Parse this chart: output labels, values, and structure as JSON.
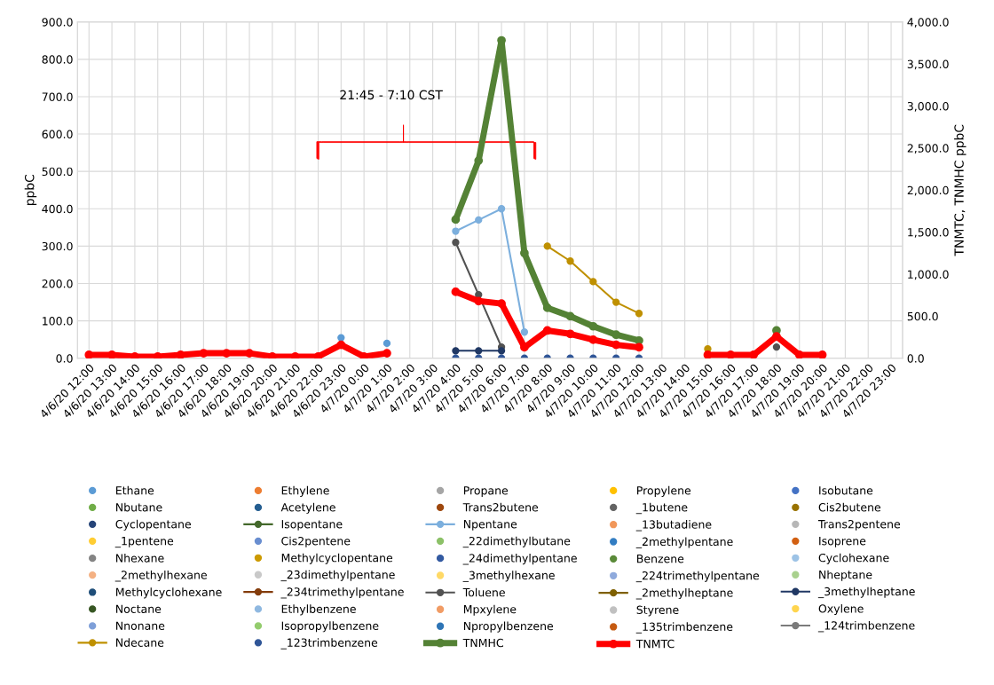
{
  "chart_data": {
    "type": "line",
    "ylabel": "ppbC",
    "y2label": "TNMTC, TNMHC ppbC",
    "annotations": [
      "21:45 - 7:10 CST"
    ],
    "categories": [
      "4/6/20 12:00",
      "4/6/20 13:00",
      "4/6/20 14:00",
      "4/6/20 15:00",
      "4/6/20 16:00",
      "4/6/20 17:00",
      "4/6/20 18:00",
      "4/6/20 19:00",
      "4/6/20 20:00",
      "4/6/20 21:00",
      "4/6/20 22:00",
      "4/6/20 23:00",
      "4/7/20 0:00",
      "4/7/20 1:00",
      "4/7/20 2:00",
      "4/7/20 3:00",
      "4/7/20 4:00",
      "4/7/20 5:00",
      "4/7/20 6:00",
      "4/7/20 7:00",
      "4/7/20 8:00",
      "4/7/20 9:00",
      "4/7/20 10:00",
      "4/7/20 11:00",
      "4/7/20 12:00",
      "4/7/20 13:00",
      "4/7/20 14:00",
      "4/7/20 15:00",
      "4/7/20 16:00",
      "4/7/20 17:00",
      "4/7/20 18:00",
      "4/7/20 19:00",
      "4/7/20 20:00",
      "4/7/20 21:00",
      "4/7/20 22:00",
      "4/7/20 23:00"
    ],
    "ylim": [
      0,
      900
    ],
    "yticks": [
      {
        "value": 0,
        "label": "0.0"
      },
      {
        "value": 100,
        "label": "100.0"
      },
      {
        "value": 200,
        "label": "200.0"
      },
      {
        "value": 300,
        "label": "300.0"
      },
      {
        "value": 400,
        "label": "400.0"
      },
      {
        "value": 500,
        "label": "500.0"
      },
      {
        "value": 600,
        "label": "600.0"
      },
      {
        "value": 700,
        "label": "700.0"
      },
      {
        "value": 800,
        "label": "800.0"
      },
      {
        "value": 900,
        "label": "900.0"
      }
    ],
    "y2lim": [
      0,
      4000
    ],
    "y2ticks": [
      {
        "value": 0,
        "label": "0.0"
      },
      {
        "value": 500,
        "label": "500.0"
      },
      {
        "value": 1000,
        "label": "1,000.0"
      },
      {
        "value": 1500,
        "label": "1,500.0"
      },
      {
        "value": 2000,
        "label": "2,000.0"
      },
      {
        "value": 2500,
        "label": "2,500.0"
      },
      {
        "value": 3000,
        "label": "3,000.0"
      },
      {
        "value": 3500,
        "label": "3,500.0"
      },
      {
        "value": 4000,
        "label": "4,000.0"
      }
    ],
    "grid": true,
    "legend": "bottom",
    "marker": "circle",
    "series": [
      {
        "name": "Ethane",
        "color": "#5b9bd5",
        "type": "scatter",
        "values": [
          null,
          null,
          null,
          null,
          null,
          null,
          null,
          null,
          null,
          null,
          null,
          55,
          null,
          40,
          null,
          null,
          null,
          null,
          null,
          null,
          null,
          null,
          null,
          null,
          null,
          null,
          null,
          null,
          null,
          null,
          null,
          null,
          null,
          null,
          null,
          null
        ]
      },
      {
        "name": "Ethylene",
        "color": "#ed7d31",
        "type": "scatter",
        "values": [
          null,
          null,
          null,
          null,
          null,
          null,
          null,
          null,
          null,
          null,
          null,
          null,
          null,
          null,
          null,
          null,
          null,
          null,
          null,
          null,
          null,
          null,
          null,
          null,
          null,
          null,
          null,
          null,
          null,
          null,
          null,
          null,
          null,
          null,
          null,
          null
        ]
      },
      {
        "name": "Propane",
        "color": "#a5a5a5",
        "type": "scatter",
        "values": [
          null,
          null,
          null,
          null,
          null,
          null,
          null,
          null,
          null,
          null,
          null,
          null,
          null,
          null,
          null,
          null,
          null,
          null,
          null,
          null,
          null,
          null,
          null,
          null,
          null,
          null,
          null,
          null,
          null,
          null,
          null,
          null,
          null,
          null,
          null,
          null
        ]
      },
      {
        "name": "Propylene",
        "color": "#ffc000",
        "type": "scatter",
        "values": [
          null,
          null,
          null,
          null,
          null,
          null,
          null,
          null,
          null,
          null,
          null,
          null,
          null,
          null,
          null,
          null,
          null,
          null,
          null,
          null,
          null,
          null,
          null,
          null,
          null,
          null,
          null,
          null,
          null,
          null,
          null,
          null,
          null,
          null,
          null,
          null
        ]
      },
      {
        "name": "Isobutane",
        "color": "#4472c4",
        "type": "scatter",
        "values": [
          null,
          null,
          null,
          null,
          null,
          null,
          null,
          null,
          null,
          null,
          null,
          null,
          null,
          null,
          null,
          null,
          null,
          null,
          null,
          null,
          null,
          null,
          null,
          null,
          null,
          null,
          null,
          null,
          null,
          null,
          null,
          null,
          null,
          null,
          null,
          null
        ]
      },
      {
        "name": "Nbutane",
        "color": "#70ad47",
        "type": "scatter",
        "values": [
          null,
          null,
          null,
          null,
          null,
          null,
          null,
          null,
          null,
          null,
          null,
          null,
          null,
          null,
          null,
          null,
          null,
          null,
          null,
          null,
          null,
          null,
          null,
          null,
          null,
          null,
          null,
          null,
          null,
          null,
          null,
          null,
          null,
          null,
          null,
          null
        ]
      },
      {
        "name": "Acetylene",
        "color": "#255e91",
        "type": "scatter",
        "values": [
          null,
          null,
          null,
          null,
          null,
          null,
          null,
          null,
          null,
          null,
          null,
          null,
          null,
          null,
          null,
          null,
          null,
          null,
          null,
          null,
          null,
          null,
          null,
          null,
          null,
          null,
          null,
          null,
          null,
          null,
          null,
          null,
          null,
          null,
          null,
          null
        ]
      },
      {
        "name": "Trans2butene",
        "color": "#9e480e",
        "type": "scatter",
        "values": [
          null,
          null,
          null,
          null,
          null,
          null,
          null,
          null,
          null,
          null,
          null,
          null,
          null,
          null,
          null,
          null,
          null,
          null,
          null,
          null,
          null,
          null,
          null,
          null,
          null,
          null,
          null,
          null,
          null,
          null,
          null,
          null,
          null,
          null,
          null,
          null
        ]
      },
      {
        "name": "_1butene",
        "color": "#636363",
        "type": "scatter",
        "values": [
          null,
          null,
          null,
          null,
          null,
          null,
          null,
          null,
          null,
          null,
          null,
          null,
          null,
          null,
          null,
          null,
          null,
          null,
          null,
          null,
          null,
          null,
          null,
          null,
          null,
          null,
          null,
          null,
          null,
          null,
          null,
          null,
          null,
          null,
          null,
          null
        ]
      },
      {
        "name": "Cis2butene",
        "color": "#997300",
        "type": "scatter",
        "values": [
          null,
          null,
          null,
          null,
          null,
          null,
          null,
          null,
          null,
          null,
          null,
          null,
          null,
          null,
          null,
          null,
          null,
          null,
          null,
          null,
          null,
          null,
          null,
          null,
          null,
          null,
          null,
          null,
          null,
          null,
          null,
          null,
          null,
          null,
          null,
          null
        ]
      },
      {
        "name": "Cyclopentane",
        "color": "#264478",
        "type": "scatter",
        "values": [
          null,
          null,
          null,
          null,
          null,
          null,
          null,
          null,
          null,
          null,
          null,
          null,
          null,
          null,
          null,
          null,
          null,
          null,
          null,
          null,
          null,
          null,
          null,
          null,
          null,
          null,
          null,
          null,
          null,
          null,
          null,
          null,
          null,
          null,
          null,
          null
        ]
      },
      {
        "name": "Isopentane",
        "color": "#43682b",
        "type": "line",
        "values": [
          null,
          null,
          null,
          null,
          null,
          null,
          null,
          null,
          null,
          null,
          null,
          null,
          null,
          null,
          null,
          null,
          null,
          null,
          null,
          null,
          null,
          null,
          null,
          null,
          null,
          null,
          null,
          null,
          null,
          null,
          null,
          null,
          null,
          null,
          null,
          null
        ]
      },
      {
        "name": "Npentane",
        "color": "#7cafdd",
        "type": "line",
        "values": [
          null,
          null,
          null,
          null,
          null,
          null,
          null,
          null,
          null,
          null,
          null,
          null,
          null,
          null,
          null,
          null,
          340,
          370,
          400,
          70,
          null,
          null,
          null,
          null,
          null,
          null,
          null,
          null,
          null,
          null,
          null,
          null,
          null,
          null,
          null,
          null
        ]
      },
      {
        "name": "_13butadiene",
        "color": "#f1975a",
        "type": "scatter",
        "values": [
          null,
          null,
          null,
          null,
          null,
          null,
          null,
          null,
          null,
          null,
          null,
          null,
          null,
          null,
          null,
          null,
          null,
          null,
          null,
          null,
          null,
          null,
          null,
          null,
          null,
          null,
          null,
          null,
          null,
          null,
          null,
          null,
          null,
          null,
          null,
          null
        ]
      },
      {
        "name": "Trans2pentene",
        "color": "#b7b7b7",
        "type": "scatter",
        "values": [
          null,
          null,
          null,
          null,
          null,
          null,
          null,
          null,
          null,
          null,
          null,
          null,
          null,
          null,
          null,
          null,
          null,
          null,
          null,
          null,
          null,
          null,
          null,
          null,
          null,
          null,
          null,
          null,
          null,
          null,
          null,
          null,
          null,
          null,
          null,
          null
        ]
      },
      {
        "name": "_1pentene",
        "color": "#ffcd33",
        "type": "scatter",
        "values": [
          null,
          null,
          null,
          null,
          null,
          null,
          null,
          null,
          null,
          null,
          null,
          null,
          null,
          null,
          null,
          null,
          null,
          null,
          null,
          null,
          null,
          null,
          null,
          null,
          null,
          null,
          null,
          null,
          null,
          null,
          null,
          null,
          null,
          null,
          null,
          null
        ]
      },
      {
        "name": "Cis2pentene",
        "color": "#698ed0",
        "type": "scatter",
        "values": [
          null,
          null,
          null,
          null,
          null,
          null,
          null,
          null,
          null,
          null,
          null,
          null,
          null,
          null,
          null,
          null,
          null,
          null,
          null,
          null,
          null,
          null,
          null,
          null,
          null,
          null,
          null,
          null,
          null,
          null,
          null,
          null,
          null,
          null,
          null,
          null
        ]
      },
      {
        "name": "_22dimethylbutane",
        "color": "#8cc168",
        "type": "scatter",
        "values": [
          null,
          null,
          null,
          null,
          null,
          null,
          null,
          null,
          null,
          null,
          null,
          null,
          null,
          null,
          null,
          null,
          null,
          null,
          null,
          null,
          null,
          null,
          null,
          null,
          null,
          null,
          null,
          null,
          null,
          null,
          null,
          null,
          null,
          null,
          null,
          null
        ]
      },
      {
        "name": "_2methylpentane",
        "color": "#327dc2",
        "type": "scatter",
        "values": [
          null,
          null,
          null,
          null,
          null,
          null,
          null,
          null,
          null,
          null,
          null,
          null,
          null,
          null,
          null,
          null,
          null,
          null,
          null,
          null,
          null,
          null,
          null,
          null,
          null,
          null,
          null,
          null,
          null,
          null,
          null,
          null,
          null,
          null,
          null,
          null
        ]
      },
      {
        "name": "Isoprene",
        "color": "#d26012",
        "type": "scatter",
        "values": [
          null,
          null,
          null,
          null,
          null,
          null,
          null,
          null,
          null,
          null,
          null,
          null,
          null,
          null,
          null,
          null,
          null,
          null,
          null,
          null,
          null,
          null,
          null,
          null,
          null,
          null,
          null,
          null,
          null,
          null,
          null,
          null,
          null,
          null,
          null,
          null
        ]
      },
      {
        "name": "Nhexane",
        "color": "#848484",
        "type": "scatter",
        "values": [
          null,
          null,
          null,
          null,
          null,
          null,
          null,
          null,
          null,
          null,
          null,
          null,
          null,
          null,
          null,
          null,
          null,
          null,
          null,
          null,
          null,
          null,
          null,
          null,
          null,
          null,
          null,
          null,
          null,
          null,
          null,
          null,
          null,
          null,
          null,
          null
        ]
      },
      {
        "name": "Methylcyclopentane",
        "color": "#cc9a00",
        "type": "scatter",
        "values": [
          null,
          null,
          null,
          null,
          null,
          null,
          null,
          null,
          null,
          null,
          null,
          null,
          null,
          null,
          null,
          null,
          null,
          null,
          null,
          null,
          null,
          null,
          null,
          null,
          null,
          null,
          null,
          null,
          null,
          null,
          null,
          null,
          null,
          null,
          null,
          null
        ]
      },
      {
        "name": "_24dimethylpentane",
        "color": "#335aa1",
        "type": "scatter",
        "values": [
          null,
          null,
          null,
          null,
          null,
          null,
          null,
          null,
          null,
          null,
          null,
          null,
          null,
          null,
          null,
          null,
          null,
          null,
          null,
          null,
          null,
          null,
          null,
          null,
          null,
          null,
          null,
          null,
          null,
          null,
          null,
          null,
          null,
          null,
          null,
          null
        ]
      },
      {
        "name": "Benzene",
        "color": "#5a8a39",
        "type": "scatter",
        "values": [
          null,
          null,
          null,
          null,
          null,
          null,
          null,
          null,
          null,
          null,
          null,
          null,
          null,
          null,
          null,
          null,
          null,
          null,
          null,
          null,
          null,
          null,
          null,
          null,
          null,
          null,
          null,
          null,
          null,
          null,
          null,
          null,
          null,
          null,
          null,
          null
        ]
      },
      {
        "name": "Cyclohexane",
        "color": "#9dc3e6",
        "type": "scatter",
        "values": [
          null,
          null,
          null,
          null,
          null,
          null,
          null,
          null,
          null,
          null,
          null,
          null,
          null,
          null,
          null,
          null,
          null,
          null,
          null,
          null,
          null,
          null,
          null,
          null,
          null,
          null,
          null,
          null,
          null,
          null,
          null,
          null,
          null,
          null,
          null,
          null
        ]
      },
      {
        "name": "_2methylhexane",
        "color": "#f4b183",
        "type": "scatter",
        "values": [
          null,
          null,
          null,
          null,
          null,
          null,
          null,
          null,
          null,
          null,
          null,
          null,
          null,
          null,
          null,
          null,
          null,
          null,
          null,
          null,
          null,
          null,
          null,
          null,
          null,
          null,
          null,
          null,
          null,
          null,
          null,
          null,
          null,
          null,
          null,
          null
        ]
      },
      {
        "name": "_23dimethylpentane",
        "color": "#c9c9c9",
        "type": "scatter",
        "values": [
          null,
          null,
          null,
          null,
          null,
          null,
          null,
          null,
          null,
          null,
          null,
          null,
          null,
          null,
          null,
          null,
          null,
          null,
          null,
          null,
          null,
          null,
          null,
          null,
          null,
          null,
          null,
          null,
          null,
          null,
          null,
          null,
          null,
          null,
          null,
          null
        ]
      },
      {
        "name": "_3methylhexane",
        "color": "#ffd966",
        "type": "scatter",
        "values": [
          null,
          null,
          null,
          null,
          null,
          null,
          null,
          null,
          null,
          null,
          null,
          null,
          null,
          null,
          null,
          null,
          null,
          null,
          null,
          null,
          null,
          null,
          null,
          null,
          null,
          null,
          null,
          null,
          null,
          null,
          null,
          null,
          null,
          null,
          null,
          null
        ]
      },
      {
        "name": "_224trimethylpentane",
        "color": "#8faadc",
        "type": "scatter",
        "values": [
          null,
          null,
          null,
          null,
          null,
          null,
          null,
          null,
          null,
          null,
          null,
          null,
          null,
          null,
          null,
          null,
          null,
          null,
          null,
          null,
          null,
          null,
          null,
          null,
          null,
          null,
          null,
          null,
          null,
          null,
          null,
          null,
          null,
          null,
          null,
          null
        ]
      },
      {
        "name": "Nheptane",
        "color": "#a9d18e",
        "type": "scatter",
        "values": [
          null,
          null,
          null,
          null,
          null,
          null,
          null,
          null,
          null,
          null,
          null,
          null,
          null,
          null,
          null,
          null,
          null,
          null,
          null,
          null,
          null,
          null,
          null,
          null,
          null,
          null,
          null,
          null,
          null,
          null,
          null,
          null,
          null,
          null,
          null,
          null
        ]
      },
      {
        "name": "Methylcyclohexane",
        "color": "#1f4e79",
        "type": "scatter",
        "values": [
          null,
          null,
          null,
          null,
          null,
          null,
          null,
          null,
          null,
          null,
          null,
          null,
          null,
          null,
          null,
          null,
          null,
          null,
          null,
          null,
          null,
          null,
          null,
          null,
          null,
          null,
          null,
          null,
          null,
          null,
          null,
          null,
          null,
          null,
          null,
          null
        ]
      },
      {
        "name": "_234trimethylpentane",
        "color": "#843c0c",
        "type": "line",
        "values": [
          null,
          null,
          null,
          null,
          null,
          null,
          null,
          null,
          null,
          null,
          null,
          null,
          null,
          null,
          null,
          null,
          null,
          null,
          null,
          null,
          null,
          null,
          null,
          null,
          null,
          null,
          null,
          null,
          null,
          null,
          null,
          null,
          null,
          null,
          null,
          null
        ]
      },
      {
        "name": "Toluene",
        "color": "#525252",
        "type": "line",
        "values": [
          null,
          null,
          null,
          null,
          null,
          null,
          null,
          null,
          null,
          null,
          null,
          null,
          null,
          null,
          null,
          null,
          310,
          170,
          30,
          null,
          null,
          null,
          null,
          null,
          null,
          null,
          null,
          null,
          null,
          null,
          30,
          null,
          null,
          null,
          null,
          null
        ]
      },
      {
        "name": "_2methylheptane",
        "color": "#7f6000",
        "type": "line",
        "values": [
          null,
          null,
          null,
          null,
          null,
          null,
          null,
          null,
          null,
          null,
          null,
          null,
          null,
          null,
          null,
          null,
          null,
          null,
          null,
          null,
          null,
          null,
          null,
          null,
          null,
          null,
          null,
          null,
          null,
          null,
          null,
          null,
          null,
          null,
          null,
          null
        ]
      },
      {
        "name": "_3methylheptane",
        "color": "#203864",
        "type": "line",
        "values": [
          null,
          null,
          null,
          null,
          null,
          null,
          null,
          null,
          null,
          null,
          null,
          null,
          null,
          null,
          null,
          null,
          20,
          20,
          20,
          null,
          null,
          null,
          null,
          null,
          null,
          null,
          null,
          null,
          null,
          null,
          null,
          null,
          null,
          null,
          null,
          null
        ]
      },
      {
        "name": "Noctane",
        "color": "#375623",
        "type": "scatter",
        "values": [
          null,
          null,
          null,
          null,
          null,
          null,
          null,
          null,
          null,
          null,
          null,
          null,
          null,
          null,
          null,
          null,
          null,
          null,
          null,
          null,
          null,
          null,
          null,
          null,
          null,
          null,
          null,
          null,
          null,
          null,
          null,
          null,
          null,
          null,
          null,
          null
        ]
      },
      {
        "name": "Ethylbenzene",
        "color": "#8fb8e0",
        "type": "scatter",
        "values": [
          null,
          null,
          null,
          null,
          null,
          null,
          null,
          null,
          null,
          null,
          null,
          null,
          null,
          null,
          null,
          null,
          null,
          null,
          null,
          null,
          null,
          null,
          null,
          null,
          null,
          null,
          null,
          null,
          null,
          null,
          null,
          null,
          null,
          null,
          null,
          null
        ]
      },
      {
        "name": "Mpxylene",
        "color": "#f19c65",
        "type": "scatter",
        "values": [
          null,
          null,
          null,
          null,
          null,
          null,
          null,
          null,
          null,
          null,
          null,
          null,
          null,
          null,
          null,
          null,
          null,
          null,
          null,
          null,
          null,
          null,
          null,
          null,
          null,
          null,
          null,
          null,
          null,
          null,
          null,
          null,
          null,
          null,
          null,
          null
        ]
      },
      {
        "name": "Styrene",
        "color": "#c0c0c0",
        "type": "scatter",
        "values": [
          null,
          null,
          null,
          null,
          null,
          null,
          null,
          null,
          null,
          null,
          null,
          null,
          null,
          null,
          null,
          null,
          null,
          null,
          null,
          null,
          null,
          null,
          null,
          null,
          null,
          null,
          null,
          null,
          null,
          null,
          null,
          null,
          null,
          null,
          null,
          null
        ]
      },
      {
        "name": "Oxylene",
        "color": "#ffd54f",
        "type": "scatter",
        "values": [
          null,
          null,
          null,
          null,
          null,
          null,
          null,
          null,
          null,
          null,
          null,
          null,
          null,
          null,
          null,
          null,
          null,
          null,
          null,
          null,
          null,
          null,
          null,
          null,
          null,
          null,
          null,
          null,
          null,
          null,
          null,
          null,
          null,
          null,
          null,
          null
        ]
      },
      {
        "name": "Nnonane",
        "color": "#7e9fd8",
        "type": "scatter",
        "values": [
          null,
          null,
          null,
          null,
          null,
          null,
          null,
          null,
          null,
          null,
          null,
          null,
          null,
          null,
          null,
          null,
          null,
          null,
          null,
          null,
          null,
          null,
          null,
          null,
          null,
          null,
          null,
          null,
          null,
          null,
          null,
          null,
          null,
          null,
          null,
          null
        ]
      },
      {
        "name": "Isopropylbenzene",
        "color": "#93cc6d",
        "type": "scatter",
        "values": [
          null,
          null,
          null,
          null,
          null,
          null,
          null,
          null,
          null,
          null,
          null,
          null,
          null,
          null,
          null,
          null,
          null,
          null,
          null,
          null,
          null,
          null,
          null,
          null,
          null,
          null,
          null,
          null,
          null,
          null,
          null,
          null,
          null,
          null,
          null,
          null
        ]
      },
      {
        "name": "Npropylbenzene",
        "color": "#2e75b6",
        "type": "scatter",
        "values": [
          null,
          null,
          null,
          null,
          null,
          null,
          null,
          null,
          null,
          null,
          null,
          null,
          null,
          null,
          null,
          null,
          null,
          null,
          null,
          null,
          null,
          null,
          null,
          null,
          null,
          null,
          null,
          null,
          null,
          null,
          null,
          null,
          null,
          null,
          null,
          null
        ]
      },
      {
        "name": "_135trimbenzene",
        "color": "#c55a11",
        "type": "scatter",
        "values": [
          null,
          null,
          null,
          null,
          null,
          null,
          null,
          null,
          null,
          null,
          null,
          null,
          null,
          null,
          null,
          null,
          null,
          null,
          null,
          null,
          null,
          null,
          null,
          null,
          null,
          null,
          null,
          null,
          null,
          null,
          null,
          null,
          null,
          null,
          null,
          null
        ]
      },
      {
        "name": "_124trimbenzene",
        "color": "#7b7b7b",
        "type": "line",
        "values": [
          null,
          null,
          null,
          null,
          null,
          null,
          null,
          null,
          null,
          null,
          null,
          null,
          null,
          null,
          null,
          null,
          null,
          null,
          null,
          null,
          null,
          null,
          null,
          null,
          null,
          null,
          null,
          null,
          null,
          null,
          null,
          null,
          null,
          null,
          null,
          null
        ]
      },
      {
        "name": "Ndecane",
        "color": "#bf9000",
        "type": "line",
        "values": [
          null,
          null,
          null,
          null,
          null,
          null,
          null,
          null,
          null,
          null,
          null,
          null,
          null,
          null,
          null,
          null,
          null,
          null,
          null,
          null,
          300,
          260,
          205,
          150,
          120,
          null,
          null,
          25,
          null,
          null,
          null,
          null,
          null,
          null,
          null,
          null
        ]
      },
      {
        "name": "_123trimbenzene",
        "color": "#2f5597",
        "type": "scatter",
        "values": [
          null,
          null,
          null,
          null,
          null,
          null,
          null,
          null,
          null,
          null,
          null,
          null,
          null,
          null,
          null,
          null,
          0,
          0,
          0,
          0,
          0,
          0,
          0,
          0,
          0,
          null,
          null,
          null,
          null,
          null,
          null,
          null,
          null,
          null,
          null,
          null
        ]
      },
      {
        "name": "TNMHC",
        "color": "#548235",
        "type": "line",
        "axis": "y2",
        "values": [
          null,
          null,
          null,
          null,
          null,
          null,
          null,
          null,
          null,
          null,
          null,
          null,
          null,
          null,
          null,
          null,
          1650,
          2350,
          3780,
          1250,
          600,
          500,
          380,
          280,
          210,
          null,
          null,
          null,
          null,
          null,
          330,
          null,
          null,
          null,
          null,
          null
        ]
      },
      {
        "name": "TNMTC",
        "color": "#ff0000",
        "type": "line",
        "axis": "y2",
        "values": [
          40,
          40,
          20,
          20,
          40,
          60,
          60,
          60,
          20,
          20,
          20,
          160,
          20,
          60,
          null,
          null,
          790,
          680,
          650,
          130,
          330,
          290,
          220,
          160,
          130,
          null,
          null,
          40,
          40,
          40,
          260,
          40,
          40,
          null,
          null,
          null
        ]
      }
    ]
  }
}
